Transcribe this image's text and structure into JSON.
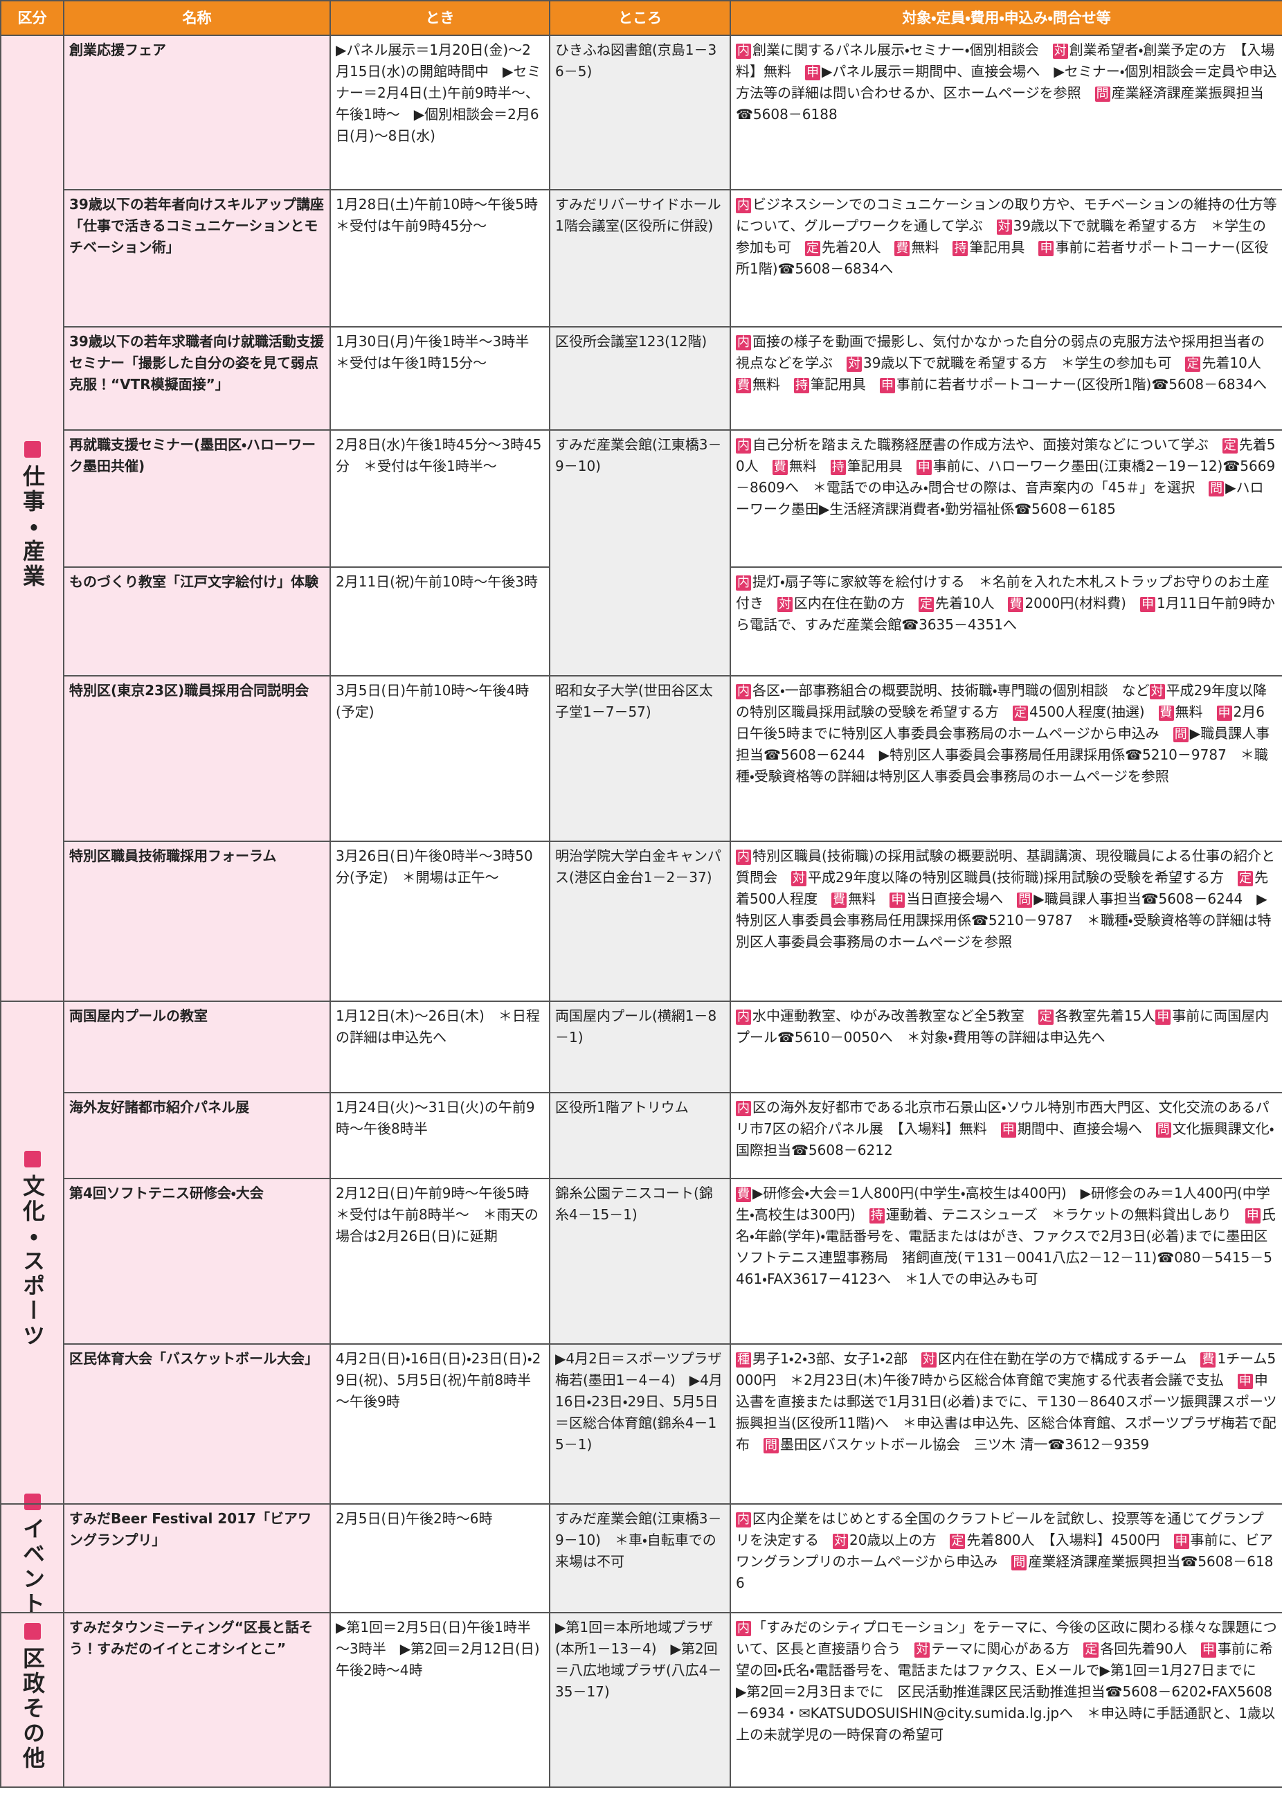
{
  "header": [
    "区分",
    "名称",
    "とき",
    "ところ",
    "対象・定員・費用・申込み・問合せ等"
  ],
  "sections": [
    {
      "label": "仕事・産業",
      "rows": [
        {
          "name": "創業応援フェア",
          "when": "▶パネル展示＝1月20日(金)～2月15日(水)の開館時間中　▶セミナー＝2月4日(土)午前9時半～、午後1時～　▶個別相談会＝2月6日(月)～8日(水)",
          "where": "ひきふね図書館(京島1－36－5)",
          "details": [
            {
              "tag": "内",
              "text": "創業に関するパネル展示・セミナー・個別相談会　"
            },
            {
              "tag": "対",
              "text": "創業希望者・創業予定の方　【入場料】無料　"
            },
            {
              "tag": "申",
              "text": "▶パネル展示＝期間中、直接会場へ　▶セミナー・個別相談会＝定員や申込方法等の詳細は問い合わせるか、区ホームページを参照　"
            },
            {
              "tag": "問",
              "text": "産業経済課産業振興担当☎5608－6188"
            }
          ]
        },
        {
          "name": "39歳以下の若年者向けスキルアップ講座「仕事で活きるコミュニケーションとモチベーション術」",
          "when": "1月28日(土)午前10時～午後5時　＊受付は午前9時45分～",
          "where": "すみだリバーサイドホール1階会議室(区役所に併設)",
          "details": [
            {
              "tag": "内",
              "text": "ビジネスシーンでのコミュニケーションの取り方や、モチベーションの維持の仕方等について、グループワークを通して学ぶ　"
            },
            {
              "tag": "対",
              "text": "39歳以下で就職を希望する方　＊学生の参加も可　"
            },
            {
              "tag": "定",
              "text": "先着20人　"
            },
            {
              "tag": "費",
              "text": "無料　"
            },
            {
              "tag": "持",
              "text": "筆記用具　"
            },
            {
              "tag": "申",
              "text": "事前に若者サポートコーナー(区役所1階)☎5608－6834へ"
            }
          ]
        },
        {
          "name": "39歳以下の若年求職者向け就職活動支援セミナー「撮影した自分の姿を見て弱点克服！“VTR模擬面接”」",
          "when": "1月30日(月)午後1時半～3時半　＊受付は午後1時15分～",
          "where": "区役所会議室123(12階)",
          "details": [
            {
              "tag": "内",
              "text": "面接の様子を動画で撮影し、気付かなかった自分の弱点の克服方法や採用担当者の視点などを学ぶ　"
            },
            {
              "tag": "対",
              "text": "39歳以下で就職を希望する方　＊学生の参加も可　"
            },
            {
              "tag": "定",
              "text": "先着10人　"
            },
            {
              "tag": "費",
              "text": "無料　"
            },
            {
              "tag": "持",
              "text": "筆記用具　"
            },
            {
              "tag": "申",
              "text": "事前に若者サポートコーナー(区役所1階)☎5608－6834へ"
            }
          ]
        },
        {
          "name": "再就職支援セミナー(墨田区・ハローワーク墨田共催)",
          "when": "2月8日(水)午後1時45分～3時45分　＊受付は午後1時半～",
          "where": "すみだ産業会館(江東橋3－9－10)",
          "details": [
            {
              "tag": "内",
              "text": "自己分析を踏まえた職務経歴書の作成方法や、面接対策などについて学ぶ　"
            },
            {
              "tag": "定",
              "text": "先着50人　"
            },
            {
              "tag": "費",
              "text": "無料　"
            },
            {
              "tag": "持",
              "text": "筆記用具　"
            },
            {
              "tag": "申",
              "text": "事前に、ハローワーク墨田(江東橋2－19－12)☎5669－8609へ　＊電話での申込み・問合せの際は、音声案内の「45＃」を選択　"
            },
            {
              "tag": "問",
              "text": "▶ハローワーク墨田▶生活経済課消費者・勤労福祉係☎5608－6185"
            }
          ]
        },
        {
          "name": "ものづくり教室「江戸文字絵付け」体験",
          "when": "2月11日(祝)午前10時～午後3時",
          "details": [
            {
              "tag": "内",
              "text": "提灯・扇子等に家紋等を絵付けする　＊名前を入れた木札ストラップお守りのお土産付き　"
            },
            {
              "tag": "対",
              "text": "区内在住在勤の方　"
            },
            {
              "tag": "定",
              "text": "先着10人　"
            },
            {
              "tag": "費",
              "text": "2000円(材料費)　"
            },
            {
              "tag": "申",
              "text": "1月11日午前9時から電話で、すみだ産業会館☎3635－4351へ"
            }
          ]
        },
        {
          "name": "特別区(東京23区)職員採用合同説明会",
          "when": "3月5日(日)午前10時～午後4時(予定)",
          "where": "昭和女子大学(世田谷区太子堂1－7－57)",
          "details": [
            {
              "tag": "内",
              "text": "各区・一部事務組合の概要説明、技術職・専門職の個別相談　など"
            },
            {
              "tag": "対",
              "text": "平成29年度以降の特別区職員採用試験の受験を希望する方　"
            },
            {
              "tag": "定",
              "text": "4500人程度(抽選)　"
            },
            {
              "tag": "費",
              "text": "無料　"
            },
            {
              "tag": "申",
              "text": "2月6日午後5時までに特別区人事委員会事務局のホームページから申込み　"
            },
            {
              "tag": "問",
              "text": "▶職員課人事担当☎5608－6244　▶特別区人事委員会事務局任用課採用係☎5210－9787　＊職種・受験資格等の詳細は特別区人事委員会事務局のホームページを参照"
            }
          ]
        },
        {
          "name": "特別区職員技術職採用フォーラム",
          "when": "3月26日(日)午後0時半～3時50分(予定)　＊開場は正午～",
          "where": "明治学院大学白金キャンパス(港区白金台1－2－37)",
          "details": [
            {
              "tag": "内",
              "text": "特別区職員(技術職)の採用試験の概要説明、基調講演、現役職員による仕事の紹介と質問会　"
            },
            {
              "tag": "対",
              "text": "平成29年度以降の特別区職員(技術職)採用試験の受験を希望する方　"
            },
            {
              "tag": "定",
              "text": "先着500人程度　"
            },
            {
              "tag": "費",
              "text": "無料　"
            },
            {
              "tag": "申",
              "text": "当日直接会場へ　"
            },
            {
              "tag": "問",
              "text": "▶職員課人事担当☎5608－6244　▶特別区人事委員会事務局任用課採用係☎5210－9787　＊職種・受験資格等の詳細は特別区人事委員会事務局のホームページを参照"
            }
          ]
        }
      ]
    },
    {
      "label": "文化・スポーツ",
      "rows": [
        {
          "name": "両国屋内プールの教室",
          "when": "1月12日(木)～26日(木)　＊日程の詳細は申込先へ",
          "where": "両国屋内プール(横網1－8－1)",
          "details": [
            {
              "tag": "内",
              "text": "水中運動教室、ゆがみ改善教室など全5教室　"
            },
            {
              "tag": "定",
              "text": "各教室先着15人"
            },
            {
              "tag": "申",
              "text": "事前に両国屋内プール☎5610－0050へ　＊対象・費用等の詳細は申込先へ"
            }
          ]
        },
        {
          "name": "海外友好諸都市紹介パネル展",
          "when": "1月24日(火)～31日(火)の午前9時～午後8時半",
          "where": "区役所1階アトリウム",
          "details": [
            {
              "tag": "内",
              "text": "区の海外友好都市である北京市石景山区・ソウル特別市西大門区、文化交流のあるパリ市7区の紹介パネル展　【入場料】無料　"
            },
            {
              "tag": "申",
              "text": "期間中、直接会場へ　"
            },
            {
              "tag": "問",
              "text": "文化振興課文化・国際担当☎5608－6212"
            }
          ]
        },
        {
          "name": "第4回ソフトテニス研修会・大会",
          "when": "2月12日(日)午前9時～午後5時　＊受付は午前8時半～　＊雨天の場合は2月26日(日)に延期",
          "where": "錦糸公園テニスコート(錦糸4－15－1)",
          "details": [
            {
              "tag": "費",
              "text": "▶研修会・大会＝1人800円(中学生・高校生は400円)　▶研修会のみ＝1人400円(中学生・高校生は300円)　"
            },
            {
              "tag": "持",
              "text": "運動着、テニスシューズ　＊ラケットの無料貸出しあり　"
            },
            {
              "tag": "申",
              "text": "氏名・年齢(学年)・電話番号を、電話またははがき、ファクスで2月3日(必着)までに墨田区ソフトテニス連盟事務局　猪飼直茂(〒131－0041八広2－12－11)☎080－5415－5461・FAX3617－4123へ　＊1人での申込みも可"
            }
          ]
        },
        {
          "name": "区民体育大会「バスケットボール大会」",
          "when": "4月2日(日)・16日(日)・23日(日)・29日(祝)、5月5日(祝)午前8時半～午後9時",
          "where": "▶4月2日＝スポーツプラザ梅若(墨田1－4－4)　▶4月16日・23日・29日、5月5日＝区総合体育館(錦糸4－15－1)",
          "details": [
            {
              "tag": "種",
              "text": "男子1・2・3部、女子1・2部　"
            },
            {
              "tag": "対",
              "text": "区内在住在勤在学の方で構成するチーム　"
            },
            {
              "tag": "費",
              "text": "1チーム5000円　＊2月23日(木)午後7時から区総合体育館で実施する代表者会議で支払　"
            },
            {
              "tag": "申",
              "text": "申込書を直接または郵送で1月31日(必着)までに、〒130－8640スポーツ振興課スポーツ振興担当(区役所11階)へ　＊申込書は申込先、区総合体育館、スポーツプラザ梅若で配布　"
            },
            {
              "tag": "問",
              "text": "墨田区バスケットボール協会　三ツ木 清一☎3612－9359"
            }
          ]
        }
      ]
    },
    {
      "label": "イベント",
      "rows": [
        {
          "name": "すみだBeer Festival 2017「ビアワングランプリ」",
          "when": "2月5日(日)午後2時～6時",
          "where": "すみだ産業会館(江東橋3－9－10)　＊車・自転車での来場は不可",
          "details": [
            {
              "tag": "内",
              "text": "区内企業をはじめとする全国のクラフトビールを試飲し、投票等を通じてグランプリを決定する　"
            },
            {
              "tag": "対",
              "text": "20歳以上の方　"
            },
            {
              "tag": "定",
              "text": "先着800人　【入場料】4500円　"
            },
            {
              "tag": "申",
              "text": "事前に、ビアワングランプリのホームページから申込み　"
            },
            {
              "tag": "問",
              "text": "産業経済課産業振興担当☎5608－6186"
            }
          ]
        }
      ]
    },
    {
      "label": "区政その他",
      "rows": [
        {
          "name": "すみだタウンミーティング“区長と話そう！すみだのイイとこオシイとこ”",
          "when": "▶第1回＝2月5日(日)午後1時半～3時半　▶第2回＝2月12日(日)午後2時～4時",
          "where": "▶第1回＝本所地域プラザ(本所1－13－4)　▶第2回＝八広地域プラザ(八広4－35－17)",
          "details": [
            {
              "tag": "内",
              "text": "「すみだのシティプロモーション」をテーマに、今後の区政に関わる様々な課題について、区長と直接語り合う　"
            },
            {
              "tag": "対",
              "text": "テーマに関心がある方　"
            },
            {
              "tag": "定",
              "text": "各回先着90人　"
            },
            {
              "tag": "申",
              "text": "事前に希望の回・氏名・電話番号を、電話またはファクス、Eメールで▶第1回＝1月27日までに　▶第2回＝2月3日までに　区民活動推進課区民活動推進担当☎5608－6202・FAX5608－6934・✉KATSUDOSUISHIN@city.sumida.lg.jpへ　＊申込時に手話通訳と、1歳以上の未就学児の一時保育の希望可"
            }
          ]
        }
      ]
    }
  ]
}
